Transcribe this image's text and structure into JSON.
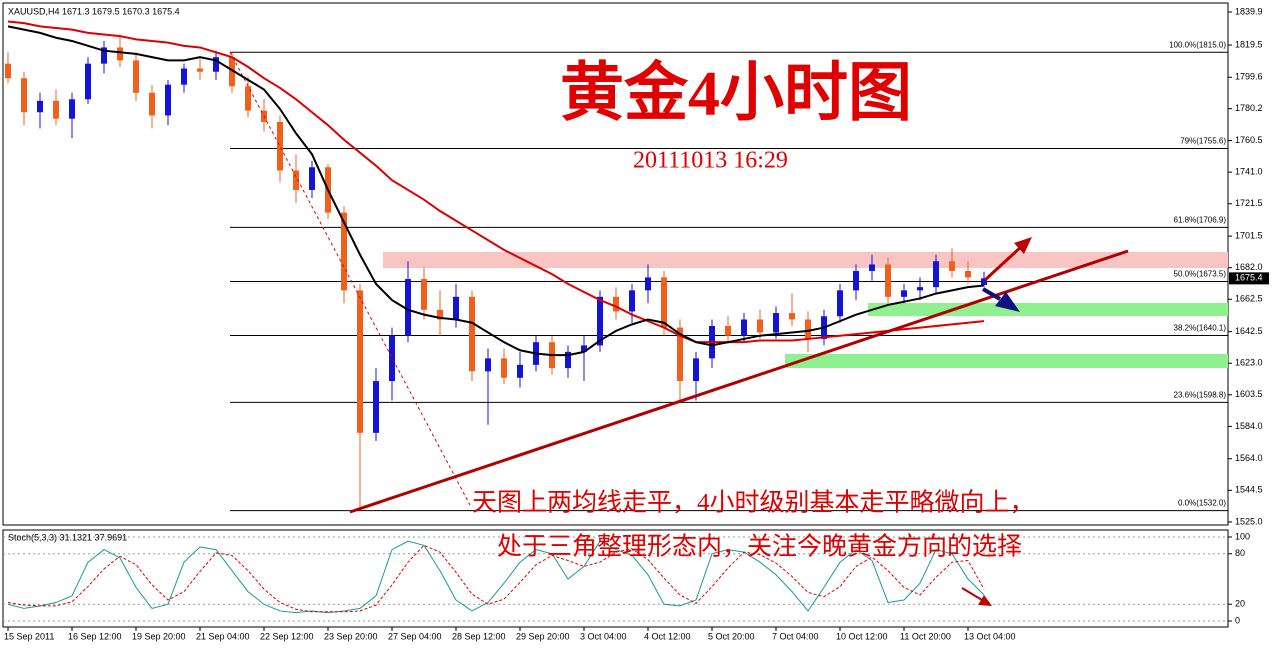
{
  "chart_data": {
    "type": "candlestick",
    "title": "XAUUSD,H4  1671.3 1679.5 1670.3 1675.4",
    "categories": [
      "15 Sep 2011",
      null,
      null,
      null,
      "16 Sep 12:00",
      null,
      null,
      null,
      "19 Sep 20:00",
      null,
      null,
      null,
      "21 Sep 04:00",
      null,
      null,
      null,
      "22 Sep 12:00",
      null,
      null,
      null,
      "23 Sep 20:00",
      null,
      null,
      null,
      "27 Sep 04:00",
      null,
      null,
      null,
      "28 Sep 12:00",
      null,
      null,
      null,
      "29 Sep 20:00",
      null,
      null,
      null,
      "3 Oct 04:00",
      null,
      null,
      null,
      "4 Oct 12:00",
      null,
      null,
      null,
      "5 Oct 20:00",
      null,
      null,
      null,
      "7 Oct 04:00",
      null,
      null,
      null,
      "10 Oct 12:00",
      null,
      null,
      null,
      "11 Oct 20:00",
      null,
      null,
      null,
      "13 Oct 04:00",
      null
    ],
    "open": [
      1808,
      1799,
      1778,
      1785,
      1774,
      1786,
      1808,
      1818,
      1810,
      1790,
      1776,
      1795,
      1805,
      1803,
      1812,
      1794,
      1779,
      1772,
      1742,
      1730,
      1744,
      1716,
      1668,
      1580,
      1612,
      1640,
      1675,
      1656,
      1650,
      1664,
      1618,
      1626,
      1614,
      1622,
      1636,
      1620,
      1630,
      1634,
      1664,
      1655,
      1668,
      1676,
      1645,
      1612,
      1626,
      1646,
      1640,
      1650,
      1642,
      1654,
      1650,
      1638,
      1652,
      1668,
      1680,
      1684,
      1664,
      1668,
      1670,
      1686,
      1680,
      1671.3
    ],
    "high": [
      1815,
      1803,
      1790,
      1792,
      1790,
      1812,
      1822,
      1826,
      1815,
      1795,
      1798,
      1808,
      1812,
      1816,
      1815,
      1800,
      1786,
      1776,
      1752,
      1748,
      1746,
      1720,
      1672,
      1620,
      1645,
      1686,
      1682,
      1668,
      1672,
      1668,
      1632,
      1632,
      1630,
      1640,
      1640,
      1634,
      1640,
      1668,
      1670,
      1672,
      1684,
      1680,
      1650,
      1630,
      1650,
      1652,
      1654,
      1656,
      1658,
      1666,
      1655,
      1656,
      1672,
      1684,
      1690,
      1688,
      1672,
      1676,
      1690,
      1694,
      1686,
      1679.5
    ],
    "low": [
      1796,
      1770,
      1768,
      1770,
      1762,
      1783,
      1802,
      1806,
      1785,
      1768,
      1770,
      1790,
      1798,
      1798,
      1790,
      1775,
      1766,
      1735,
      1722,
      1725,
      1712,
      1660,
      1532,
      1575,
      1600,
      1636,
      1650,
      1640,
      1645,
      1612,
      1585,
      1610,
      1608,
      1618,
      1616,
      1614,
      1612,
      1630,
      1650,
      1648,
      1660,
      1640,
      1600,
      1600,
      1620,
      1635,
      1636,
      1638,
      1638,
      1646,
      1630,
      1634,
      1648,
      1662,
      1674,
      1660,
      1660,
      1662,
      1666,
      1676,
      1672,
      1670.3
    ],
    "close": [
      1799,
      1778,
      1785,
      1774,
      1786,
      1808,
      1818,
      1810,
      1790,
      1776,
      1795,
      1805,
      1803,
      1812,
      1794,
      1779,
      1772,
      1742,
      1730,
      1744,
      1716,
      1668,
      1580,
      1612,
      1640,
      1675,
      1656,
      1650,
      1664,
      1618,
      1626,
      1614,
      1622,
      1636,
      1620,
      1630,
      1634,
      1664,
      1655,
      1668,
      1676,
      1645,
      1612,
      1626,
      1646,
      1640,
      1650,
      1642,
      1654,
      1650,
      1638,
      1652,
      1668,
      1680,
      1684,
      1664,
      1668,
      1670,
      1686,
      1680,
      1676,
      1675.4
    ],
    "up_color": "#1414d8",
    "down_color": "#f0601c",
    "moving_averages": [
      {
        "color": "#dd0000",
        "values": [
          1834,
          1833,
          1831,
          1830,
          1829,
          1827,
          1826,
          1825,
          1823,
          1822,
          1821,
          1819,
          1818,
          1815,
          1812,
          1806,
          1799,
          1793,
          1786,
          1778,
          1770,
          1761,
          1753,
          1745,
          1736,
          1730,
          1724,
          1717,
          1711,
          1705,
          1699,
          1693,
          1688,
          1683,
          1678,
          1672,
          1667,
          1662,
          1658,
          1653,
          1649,
          1645,
          1640,
          1636,
          1636,
          1636,
          1636,
          1637,
          1637,
          1637,
          1638,
          1639,
          1640,
          1641,
          1642,
          1643,
          1644,
          1645,
          1646,
          1647,
          1648,
          1649
        ]
      },
      {
        "color": "#000000",
        "values": [
          1831,
          1829,
          1827,
          1824,
          1822,
          1819,
          1816,
          1815,
          1814,
          1812,
          1810,
          1810,
          1812,
          1810,
          1804,
          1798,
          1792,
          1780,
          1765,
          1752,
          1730,
          1710,
          1690,
          1672,
          1662,
          1656,
          1653,
          1651,
          1650,
          1648,
          1642,
          1636,
          1631,
          1629,
          1628,
          1628,
          1630,
          1637,
          1643,
          1647,
          1650,
          1648,
          1641,
          1636,
          1634,
          1636,
          1638,
          1640,
          1641,
          1642,
          1643,
          1645,
          1649,
          1653,
          1656,
          1659,
          1661,
          1663,
          1666,
          1668,
          1670,
          1671
        ]
      }
    ],
    "ylim": [
      1523.1,
      1847.3
    ],
    "yticks": [
      1839.9,
      1819.5,
      1799.6,
      1780.2,
      1760.5,
      {
        "value": 1741.0,
        "label": "1741.0"
      },
      1721.5,
      1701.5,
      {
        "value": 1682.0,
        "label": "1682.0"
      },
      1662.5,
      1642.5,
      {
        "value": 1623.0,
        "label": "1623.0"
      },
      1603.5,
      {
        "value": 1584.0,
        "label": "1584.0"
      },
      {
        "value": 1564.0,
        "label": "1564.0"
      },
      1544.5,
      {
        "value": 1525.0,
        "label": "1525.0"
      }
    ],
    "fib_levels": [
      {
        "value": 1815.0,
        "label": "100.0%(1815.0)"
      },
      {
        "value": 1755.6,
        "label": "79%(1755.6)"
      },
      {
        "value": 1706.9,
        "label": "61.8%(1706.9)"
      },
      {
        "value": 1673.5,
        "label": "50.0%(1673.5)"
      },
      {
        "value": 1640.1,
        "label": "38.2%(1640.1)"
      },
      {
        "value": 1598.8,
        "label": "23.6%(1598.8)"
      },
      {
        "value": 1532.0,
        "label": "0.0%(1532.0)"
      }
    ],
    "annotations": {
      "heading": "黄金4小时图",
      "timestamp": "20111013 16:29",
      "comment": [
        "天图上两均线走平，4小时级别基本走平略微向上，",
        "处于三角整理形态内，关注今晚黄金方向的选择"
      ]
    },
    "indicator": {
      "type": "line",
      "title": "Stoch(5,3,3) 31.1321 37.9691",
      "series": [
        {
          "color": "#1a9a9a",
          "values": [
            20,
            15,
            18,
            22,
            30,
            70,
            85,
            75,
            40,
            15,
            20,
            70,
            88,
            85,
            60,
            35,
            20,
            12,
            10,
            12,
            10,
            12,
            15,
            30,
            85,
            95,
            90,
            60,
            25,
            12,
            22,
            45,
            70,
            85,
            80,
            50,
            65,
            95,
            85,
            78,
            55,
            20,
            18,
            25,
            80,
            85,
            82,
            70,
            55,
            35,
            12,
            40,
            70,
            85,
            72,
            22,
            25,
            45,
            85,
            80,
            50,
            31.1321
          ]
        },
        {
          "color": "#e00000",
          "dashed": true,
          "values": [
            22,
            19,
            18,
            18,
            23,
            41,
            62,
            77,
            67,
            43,
            25,
            35,
            59,
            81,
            78,
            60,
            38,
            22,
            14,
            11,
            11,
            11,
            12,
            19,
            43,
            70,
            90,
            82,
            58,
            32,
            20,
            26,
            46,
            67,
            78,
            72,
            65,
            70,
            82,
            86,
            73,
            51,
            31,
            21,
            41,
            63,
            82,
            79,
            69,
            53,
            34,
            29,
            41,
            65,
            76,
            60,
            40,
            31,
            52,
            70,
            72,
            37.9691
          ]
        }
      ],
      "ylim": [
        -7.1,
        108.3
      ],
      "yticks": [
        100,
        80,
        20,
        0
      ]
    }
  }
}
